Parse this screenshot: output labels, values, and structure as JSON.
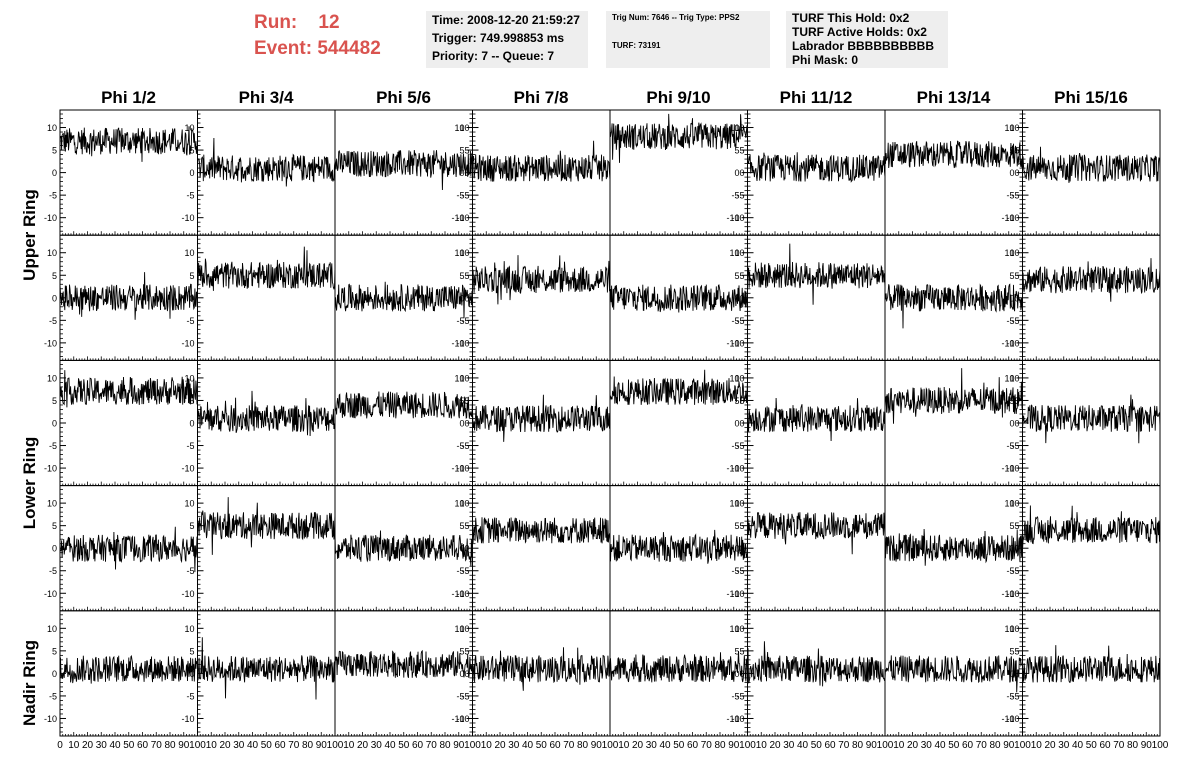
{
  "run": {
    "run_label": "Run:",
    "run_value": "12",
    "event_label": "Event:",
    "event_value": "544482"
  },
  "info_time": {
    "time": "Time: 2008-12-20 21:59:27",
    "trigger": "Trigger: 749.998853 ms",
    "priority": "Priority: 7 -- Queue: 7"
  },
  "info_trig": {
    "trig": "Trig Num: 7646 -- Trig Type: PPS2",
    "turf": "TURF: 73191"
  },
  "info_turf": {
    "hold": "TURF This Hold: 0x2",
    "active": "TURF Active Holds: 0x2",
    "labrador": "Labrador BBBBBBBBBB",
    "phimask": "Phi Mask: 0"
  },
  "chart_data": {
    "type": "line",
    "columns": [
      "Phi 1/2",
      "Phi 3/4",
      "Phi 5/6",
      "Phi 7/8",
      "Phi 9/10",
      "Phi 11/12",
      "Phi 13/14",
      "Phi 15/16"
    ],
    "rows": [
      "Upper Ring",
      "Upper Ring",
      "Lower Ring",
      "Lower Ring",
      "Nadir Ring"
    ],
    "row_labels": [
      "Upper Ring",
      "Lower Ring",
      "Nadir Ring"
    ],
    "xlim": [
      0,
      100
    ],
    "ylim": [
      -13,
      13
    ],
    "y_ticks": [
      -10,
      -5,
      0,
      5,
      10
    ],
    "y_tick_labels": [
      "-10",
      "-5",
      "0",
      "5",
      "10"
    ],
    "x_tick_labels": [
      "0",
      "10",
      "20",
      "30",
      "40",
      "50",
      "60",
      "70",
      "80",
      "90",
      "100"
    ],
    "y_axis_side": [
      "left",
      "left",
      "right",
      "left",
      "right",
      "left",
      "right",
      "left"
    ],
    "baselines": [
      [
        7,
        1,
        2,
        1,
        8,
        1,
        4,
        1
      ],
      [
        0,
        5,
        0,
        4,
        0,
        5,
        0,
        4
      ],
      [
        7,
        1,
        4,
        1,
        7,
        1,
        5,
        1
      ],
      [
        0,
        5,
        0,
        4,
        0,
        5,
        0,
        4
      ],
      [
        1,
        1,
        2,
        1,
        1,
        1,
        1,
        1
      ]
    ],
    "amplitude": 3,
    "grid": false
  }
}
